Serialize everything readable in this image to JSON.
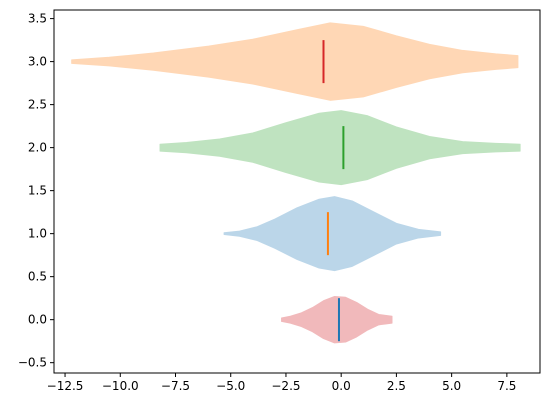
{
  "chart_data": {
    "type": "violin",
    "orientation": "horizontal",
    "title": "",
    "xlabel": "",
    "ylabel": "",
    "xlim": [
      -13.0,
      9.0
    ],
    "ylim": [
      -0.62,
      3.6
    ],
    "x_ticks": [
      {
        "value": -12.5,
        "label": "−12.5"
      },
      {
        "value": -10.0,
        "label": "−10.0"
      },
      {
        "value": -7.5,
        "label": "−7.5"
      },
      {
        "value": -5.0,
        "label": "−5.0"
      },
      {
        "value": -2.5,
        "label": "−2.5"
      },
      {
        "value": 0.0,
        "label": "0.0"
      },
      {
        "value": 2.5,
        "label": "2.5"
      },
      {
        "value": 5.0,
        "label": "5.0"
      },
      {
        "value": 7.5,
        "label": "7.5"
      }
    ],
    "y_ticks": [
      {
        "value": -0.5,
        "label": "−0.5"
      },
      {
        "value": 0.0,
        "label": "0.0"
      },
      {
        "value": 0.5,
        "label": "0.5"
      },
      {
        "value": 1.0,
        "label": "1.0"
      },
      {
        "value": 1.5,
        "label": "1.5"
      },
      {
        "value": 2.0,
        "label": "2.0"
      },
      {
        "value": 2.5,
        "label": "2.5"
      },
      {
        "value": 3.0,
        "label": "3.0"
      },
      {
        "value": 3.5,
        "label": "3.5"
      }
    ],
    "grid": false,
    "legend": "none",
    "violins": [
      {
        "position": 0,
        "min": -2.7,
        "max": 2.3,
        "median": -0.1,
        "fill": "#f1b9bb",
        "median_color": "#1f77b4",
        "profile": [
          {
            "x": -2.7,
            "hw": 0.02
          },
          {
            "x": -2.3,
            "hw": 0.04
          },
          {
            "x": -1.8,
            "hw": 0.08
          },
          {
            "x": -1.3,
            "hw": 0.14
          },
          {
            "x": -0.8,
            "hw": 0.22
          },
          {
            "x": -0.3,
            "hw": 0.27
          },
          {
            "x": 0.2,
            "hw": 0.26
          },
          {
            "x": 0.7,
            "hw": 0.2
          },
          {
            "x": 1.2,
            "hw": 0.12
          },
          {
            "x": 1.7,
            "hw": 0.06
          },
          {
            "x": 2.0,
            "hw": 0.05
          },
          {
            "x": 2.3,
            "hw": 0.04
          }
        ]
      },
      {
        "position": 1,
        "min": -5.3,
        "max": 4.5,
        "median": -0.6,
        "fill": "#bbd6e9",
        "median_color": "#ff7f0e",
        "profile": [
          {
            "x": -5.3,
            "hw": 0.01
          },
          {
            "x": -4.6,
            "hw": 0.03
          },
          {
            "x": -3.8,
            "hw": 0.08
          },
          {
            "x": -3.0,
            "hw": 0.17
          },
          {
            "x": -2.0,
            "hw": 0.3
          },
          {
            "x": -1.0,
            "hw": 0.4
          },
          {
            "x": -0.3,
            "hw": 0.43
          },
          {
            "x": 0.5,
            "hw": 0.38
          },
          {
            "x": 1.5,
            "hw": 0.25
          },
          {
            "x": 2.5,
            "hw": 0.12
          },
          {
            "x": 3.5,
            "hw": 0.05
          },
          {
            "x": 4.5,
            "hw": 0.02
          }
        ]
      },
      {
        "position": 2,
        "min": -8.2,
        "max": 8.1,
        "median": 0.1,
        "fill": "#bfe3c0",
        "median_color": "#2ca02c",
        "profile": [
          {
            "x": -8.2,
            "hw": 0.04
          },
          {
            "x": -7.0,
            "hw": 0.06
          },
          {
            "x": -5.5,
            "hw": 0.1
          },
          {
            "x": -4.0,
            "hw": 0.17
          },
          {
            "x": -2.5,
            "hw": 0.29
          },
          {
            "x": -1.0,
            "hw": 0.4
          },
          {
            "x": 0.0,
            "hw": 0.43
          },
          {
            "x": 1.2,
            "hw": 0.37
          },
          {
            "x": 2.5,
            "hw": 0.24
          },
          {
            "x": 4.0,
            "hw": 0.13
          },
          {
            "x": 5.5,
            "hw": 0.07
          },
          {
            "x": 7.0,
            "hw": 0.05
          },
          {
            "x": 8.1,
            "hw": 0.04
          }
        ]
      },
      {
        "position": 3,
        "min": -12.2,
        "max": 8.0,
        "median": -0.8,
        "fill": "#ffd7b5",
        "median_color": "#d62728",
        "profile": [
          {
            "x": -12.2,
            "hw": 0.02
          },
          {
            "x": -10.5,
            "hw": 0.05
          },
          {
            "x": -8.5,
            "hw": 0.1
          },
          {
            "x": -6.0,
            "hw": 0.18
          },
          {
            "x": -4.0,
            "hw": 0.26
          },
          {
            "x": -2.0,
            "hw": 0.37
          },
          {
            "x": -0.5,
            "hw": 0.45
          },
          {
            "x": 1.0,
            "hw": 0.41
          },
          {
            "x": 2.5,
            "hw": 0.3
          },
          {
            "x": 4.0,
            "hw": 0.2
          },
          {
            "x": 5.5,
            "hw": 0.13
          },
          {
            "x": 7.0,
            "hw": 0.09
          },
          {
            "x": 8.0,
            "hw": 0.07
          }
        ]
      }
    ]
  }
}
